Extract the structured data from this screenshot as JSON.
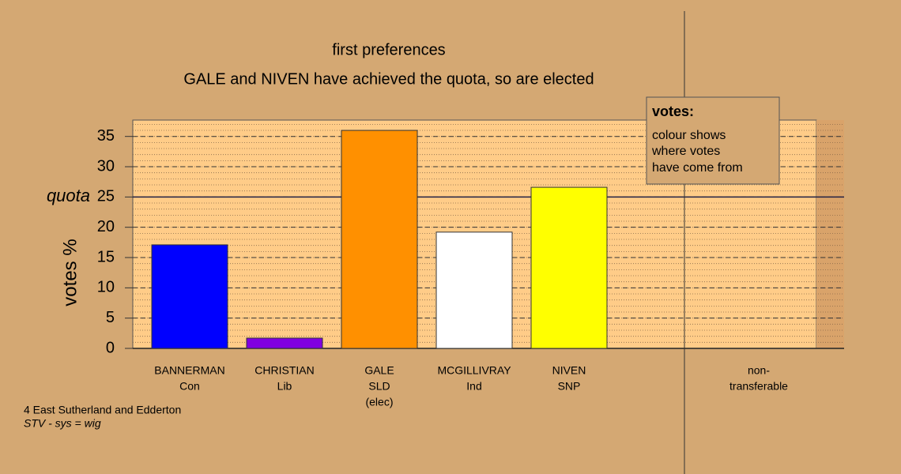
{
  "chart_data": {
    "type": "bar",
    "title": "first preferences",
    "subtitle": "GALE and NIVEN have achieved the quota, so are elected",
    "ylabel": "votes %",
    "categories": [
      [
        "BANNERMAN",
        "Con"
      ],
      [
        "CHRISTIAN",
        "Lib"
      ],
      [
        "GALE",
        "SLD",
        "(elec)"
      ],
      [
        "MCGILLIVRAY",
        "Ind"
      ],
      [
        "NIVEN",
        "SNP"
      ],
      [
        "non-",
        "transferable"
      ]
    ],
    "values": [
      17.1,
      1.7,
      36.0,
      19.2,
      26.6,
      0
    ],
    "colors": [
      "#0000ff",
      "#8000e0",
      "#ff9000",
      "#ffffff",
      "#ffff00",
      "#cccccc"
    ],
    "ylim": [
      0,
      37.7
    ],
    "yticks": [
      0,
      5,
      10,
      15,
      20,
      25,
      30,
      35
    ],
    "grid": true,
    "quota": {
      "value": 25,
      "label": "quota"
    },
    "legend": {
      "title": "votes:",
      "lines": [
        "colour shows",
        "where votes",
        "have come from"
      ]
    },
    "footer": [
      "4 East Sutherland and Edderton",
      "STV - sys = wig"
    ]
  }
}
